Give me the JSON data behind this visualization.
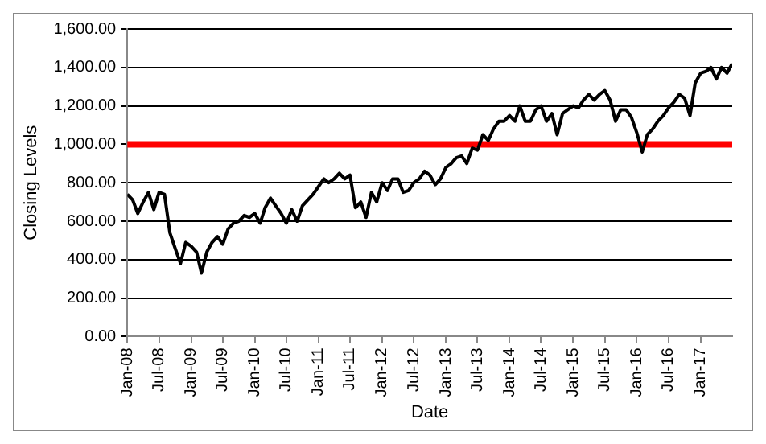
{
  "chart_data": {
    "type": "line",
    "xlabel": "Date",
    "ylabel": "Closing Levels",
    "x": [
      "2008-01",
      "2008-02",
      "2008-03",
      "2008-04",
      "2008-05",
      "2008-06",
      "2008-07",
      "2008-08",
      "2008-09",
      "2008-10",
      "2008-11",
      "2008-12",
      "2009-01",
      "2009-02",
      "2009-03",
      "2009-04",
      "2009-05",
      "2009-06",
      "2009-07",
      "2009-08",
      "2009-09",
      "2009-10",
      "2009-11",
      "2009-12",
      "2010-01",
      "2010-02",
      "2010-03",
      "2010-04",
      "2010-05",
      "2010-06",
      "2010-07",
      "2010-08",
      "2010-09",
      "2010-10",
      "2010-11",
      "2010-12",
      "2011-01",
      "2011-02",
      "2011-03",
      "2011-04",
      "2011-05",
      "2011-06",
      "2011-07",
      "2011-08",
      "2011-09",
      "2011-10",
      "2011-11",
      "2011-12",
      "2012-01",
      "2012-02",
      "2012-03",
      "2012-04",
      "2012-05",
      "2012-06",
      "2012-07",
      "2012-08",
      "2012-09",
      "2012-10",
      "2012-11",
      "2012-12",
      "2013-01",
      "2013-02",
      "2013-03",
      "2013-04",
      "2013-05",
      "2013-06",
      "2013-07",
      "2013-08",
      "2013-09",
      "2013-10",
      "2013-11",
      "2013-12",
      "2014-01",
      "2014-02",
      "2014-03",
      "2014-04",
      "2014-05",
      "2014-06",
      "2014-07",
      "2014-08",
      "2014-09",
      "2014-10",
      "2014-11",
      "2014-12",
      "2015-01",
      "2015-02",
      "2015-03",
      "2015-04",
      "2015-05",
      "2015-06",
      "2015-07",
      "2015-08",
      "2015-09",
      "2015-10",
      "2015-11",
      "2015-12",
      "2016-01",
      "2016-02",
      "2016-03",
      "2016-04",
      "2016-05",
      "2016-06",
      "2016-07",
      "2016-08",
      "2016-09",
      "2016-10",
      "2016-11",
      "2016-12",
      "2017-01",
      "2017-02",
      "2017-03",
      "2017-04",
      "2017-05",
      "2017-06",
      "2017-07"
    ],
    "series": [
      {
        "color": "#000000",
        "values": [
          740,
          710,
          640,
          700,
          750,
          660,
          750,
          740,
          540,
          460,
          380,
          490,
          470,
          440,
          330,
          440,
          490,
          520,
          480,
          560,
          590,
          600,
          630,
          620,
          640,
          590,
          670,
          720,
          680,
          640,
          590,
          660,
          600,
          680,
          710,
          740,
          780,
          820,
          800,
          820,
          850,
          820,
          840,
          670,
          700,
          620,
          750,
          700,
          800,
          760,
          820,
          820,
          750,
          760,
          800,
          820,
          860,
          840,
          790,
          820,
          880,
          900,
          930,
          940,
          900,
          980,
          970,
          1050,
          1020,
          1080,
          1120,
          1120,
          1150,
          1120,
          1200,
          1120,
          1120,
          1180,
          1200,
          1120,
          1160,
          1050,
          1160,
          1180,
          1200,
          1190,
          1230,
          1260,
          1230,
          1260,
          1280,
          1230,
          1120,
          1180,
          1180,
          1140,
          1060,
          960,
          1050,
          1080,
          1120,
          1150,
          1190,
          1220,
          1260,
          1240,
          1150,
          1320,
          1370,
          1380,
          1400,
          1340,
          1400,
          1370,
          1420
        ]
      }
    ],
    "xlim": [
      "2008-01",
      "2017-07"
    ],
    "xticks": [
      {
        "value": "2008-01",
        "label": "Jan-08"
      },
      {
        "value": "2008-07",
        "label": "Jul-08"
      },
      {
        "value": "2009-01",
        "label": "Jan-09"
      },
      {
        "value": "2009-07",
        "label": "Jul-09"
      },
      {
        "value": "2010-01",
        "label": "Jan-10"
      },
      {
        "value": "2010-07",
        "label": "Jul-10"
      },
      {
        "value": "2011-01",
        "label": "Jan-11"
      },
      {
        "value": "2011-07",
        "label": "Jul-11"
      },
      {
        "value": "2012-01",
        "label": "Jan-12"
      },
      {
        "value": "2012-07",
        "label": "Jul-12"
      },
      {
        "value": "2013-01",
        "label": "Jan-13"
      },
      {
        "value": "2013-07",
        "label": "Jul-13"
      },
      {
        "value": "2014-01",
        "label": "Jan-14"
      },
      {
        "value": "2014-07",
        "label": "Jul-14"
      },
      {
        "value": "2015-01",
        "label": "Jan-15"
      },
      {
        "value": "2015-07",
        "label": "Jul-15"
      },
      {
        "value": "2016-01",
        "label": "Jan-16"
      },
      {
        "value": "2016-07",
        "label": "Jul-16"
      },
      {
        "value": "2017-01",
        "label": "Jan-17"
      }
    ],
    "ylim": [
      0,
      1600
    ],
    "yticks": [
      {
        "value": 0,
        "label": "0.00"
      },
      {
        "value": 200,
        "label": "200.00"
      },
      {
        "value": 400,
        "label": "400.00"
      },
      {
        "value": 600,
        "label": "600.00"
      },
      {
        "value": 800,
        "label": "800.00"
      },
      {
        "value": 1000,
        "label": "1,000.00"
      },
      {
        "value": 1200,
        "label": "1,200.00"
      },
      {
        "value": 1400,
        "label": "1,400.00"
      },
      {
        "value": 1600,
        "label": "1,600.00"
      }
    ],
    "ref_lines": [
      {
        "axis": "y",
        "value": 1000,
        "color": "#ff0000"
      }
    ],
    "grid": "y",
    "legend": false,
    "marker": "none",
    "line_style": "solid"
  }
}
